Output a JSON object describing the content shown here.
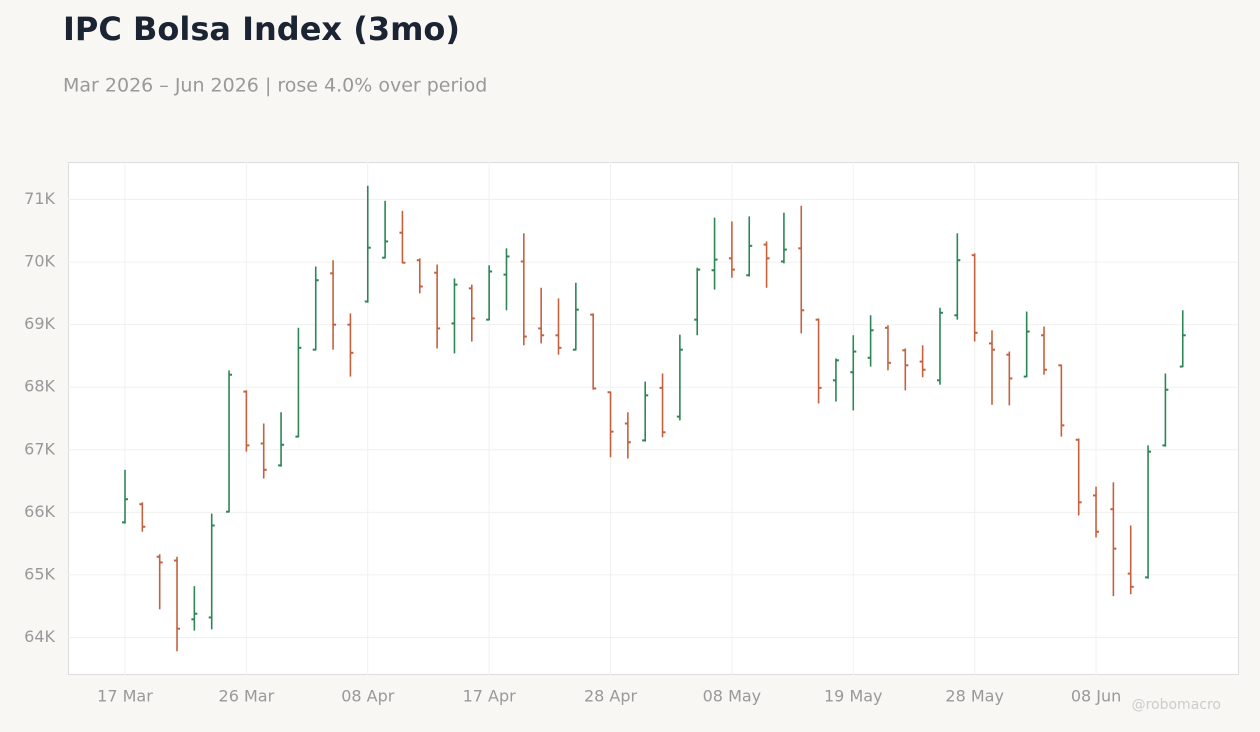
{
  "chart_data": {
    "type": "ohlc",
    "title": "IPC Bolsa Index (3mo)",
    "subtitle": "Mar 2026 – Jun 2026 | rose 4.0% over period",
    "watermark": "@robomacro",
    "categories": [
      "17 Mar",
      null,
      null,
      null,
      null,
      null,
      null,
      "26 Mar",
      null,
      null,
      null,
      null,
      null,
      null,
      "08 Apr",
      null,
      null,
      null,
      null,
      null,
      null,
      "17 Apr",
      null,
      null,
      null,
      null,
      null,
      null,
      "28 Apr",
      null,
      null,
      null,
      null,
      null,
      null,
      "08 May",
      null,
      null,
      null,
      null,
      null,
      null,
      "19 May",
      null,
      null,
      null,
      null,
      null,
      null,
      "28 May",
      null,
      null,
      null,
      null,
      null,
      null,
      "08 Jun",
      null,
      null,
      null,
      null,
      null
    ],
    "open": [
      65840,
      66130,
      65290,
      65230,
      64290,
      64320,
      66010,
      67930,
      67100,
      66750,
      67210,
      68600,
      69820,
      69000,
      69370,
      70070,
      70470,
      70030,
      69830,
      69020,
      69580,
      69080,
      69800,
      70010,
      68940,
      68830,
      68600,
      69160,
      67920,
      67420,
      67150,
      67990,
      67530,
      69080,
      69870,
      70060,
      69790,
      70280,
      70010,
      70220,
      69080,
      68110,
      68240,
      68470,
      68950,
      68590,
      68410,
      68110,
      69150,
      70110,
      68700,
      68520,
      68170,
      68830,
      68350,
      67160,
      66270,
      66050,
      65020,
      64960,
      67070,
      68330
    ],
    "high": [
      66680,
      66160,
      65330,
      65290,
      64820,
      65980,
      68270,
      67950,
      67420,
      67600,
      68950,
      69930,
      70030,
      69180,
      71220,
      70980,
      70820,
      70060,
      69960,
      69740,
      69640,
      69950,
      70220,
      70460,
      69590,
      69420,
      69670,
      69180,
      67930,
      67600,
      68090,
      68220,
      68840,
      69910,
      70710,
      70650,
      70730,
      70330,
      70790,
      70900,
      69100,
      68460,
      68830,
      69150,
      68990,
      68620,
      68670,
      69270,
      70460,
      70140,
      68910,
      68570,
      69210,
      68970,
      68360,
      67180,
      66410,
      66480,
      65790,
      67070,
      68220,
      69230
    ],
    "low": [
      65820,
      65690,
      64450,
      63780,
      64110,
      64130,
      66000,
      66970,
      66540,
      66730,
      67200,
      68590,
      68600,
      68170,
      69350,
      70060,
      69980,
      69500,
      68620,
      68540,
      68730,
      69070,
      69230,
      68670,
      68700,
      68520,
      68590,
      67960,
      66880,
      66860,
      67130,
      67200,
      67470,
      68830,
      69560,
      69750,
      69770,
      69590,
      69980,
      68860,
      67740,
      67770,
      67630,
      68330,
      68270,
      67950,
      68160,
      68040,
      69080,
      68730,
      67720,
      67710,
      68160,
      68200,
      67210,
      65950,
      65600,
      64660,
      64690,
      64940,
      67050,
      68320
    ],
    "close": [
      66210,
      65770,
      65200,
      64140,
      64380,
      65790,
      68200,
      67070,
      66680,
      67080,
      68630,
      69710,
      69000,
      68550,
      70230,
      70330,
      69990,
      69610,
      68940,
      69640,
      69100,
      69850,
      70090,
      68810,
      68830,
      68630,
      69240,
      67980,
      67290,
      67120,
      67870,
      67280,
      68600,
      69880,
      70040,
      69880,
      70260,
      70060,
      70200,
      69230,
      67990,
      68430,
      68570,
      68910,
      68390,
      68350,
      68280,
      69190,
      70030,
      68870,
      68600,
      68140,
      68890,
      68280,
      67390,
      66160,
      65690,
      65420,
      64810,
      66970,
      67960,
      68830
    ],
    "up_color": "#2e8555",
    "down_color": "#c4623f",
    "ylim": [
      63400,
      71600
    ],
    "yticks": [
      {
        "value": 64000,
        "label": "64K"
      },
      {
        "value": 65000,
        "label": "65K"
      },
      {
        "value": 66000,
        "label": "66K"
      },
      {
        "value": 67000,
        "label": "67K"
      },
      {
        "value": 68000,
        "label": "68K"
      },
      {
        "value": 69000,
        "label": "69K"
      },
      {
        "value": 70000,
        "label": "70K"
      },
      {
        "value": 71000,
        "label": "71K"
      }
    ],
    "grid": true
  }
}
